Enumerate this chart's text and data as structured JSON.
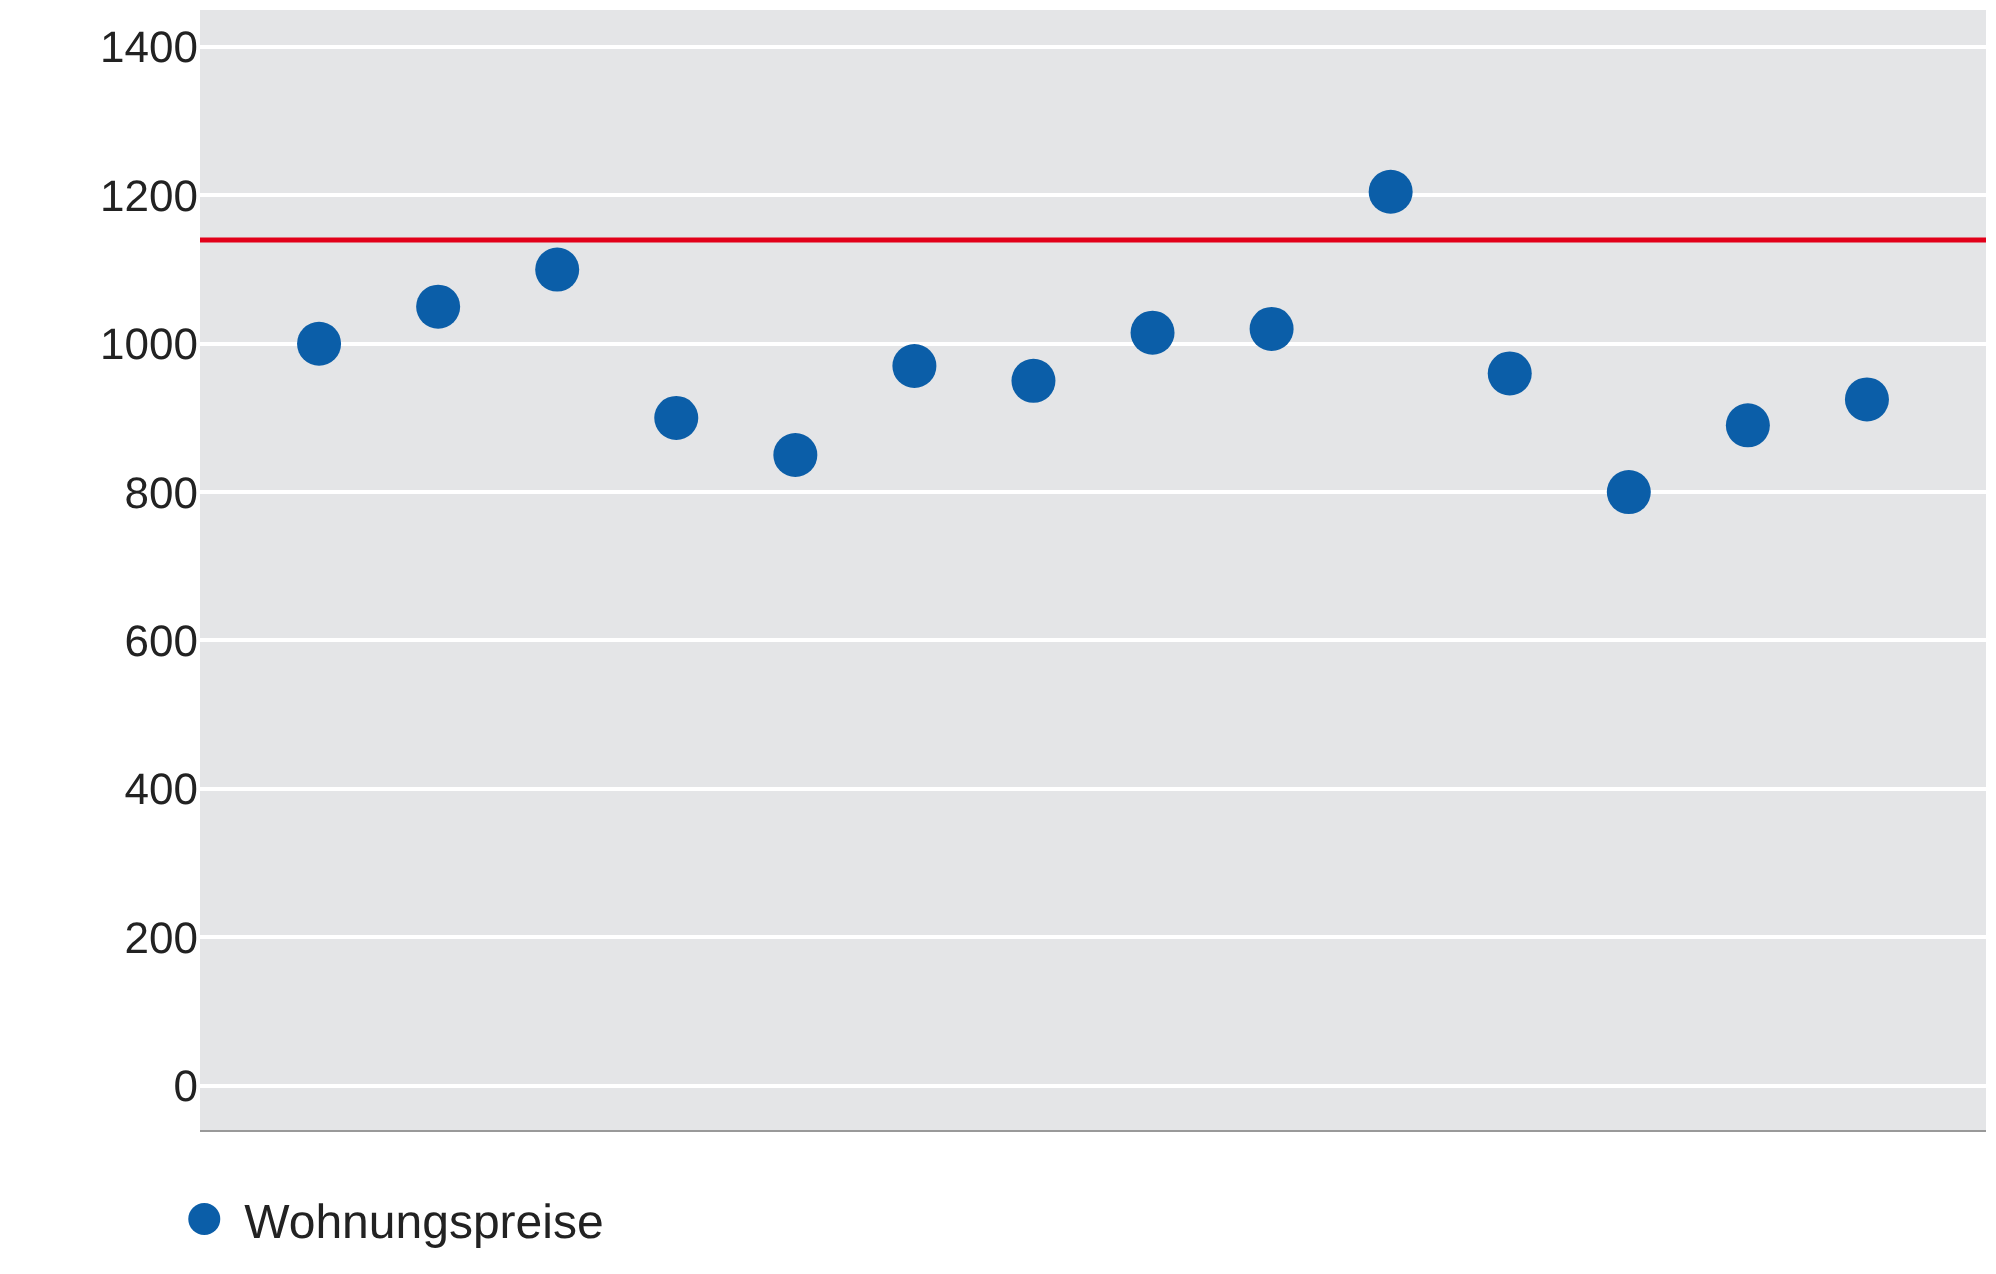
{
  "chart_data": {
    "type": "scatter",
    "categories": [
      null,
      null,
      null,
      null,
      null,
      null,
      null,
      null,
      null,
      null,
      null,
      null,
      null,
      null
    ],
    "series": [
      {
        "name": "Wohnungspreise",
        "color": "#0b5ea8",
        "values": [
          1000,
          1050,
          1100,
          900,
          850,
          970,
          950,
          1015,
          1020,
          1205,
          960,
          800,
          890,
          925
        ]
      }
    ],
    "ylim": [
      -60,
      1450
    ],
    "yticks": [
      0,
      200,
      400,
      600,
      800,
      1000,
      1200,
      1400
    ],
    "grid": "y",
    "legend": "bottom left",
    "marker": "circle",
    "tick_labels": "y",
    "ref_lines": [
      {
        "axis": "y",
        "value": 1140,
        "color": "#e2001a",
        "line_style": "solid"
      }
    ]
  }
}
